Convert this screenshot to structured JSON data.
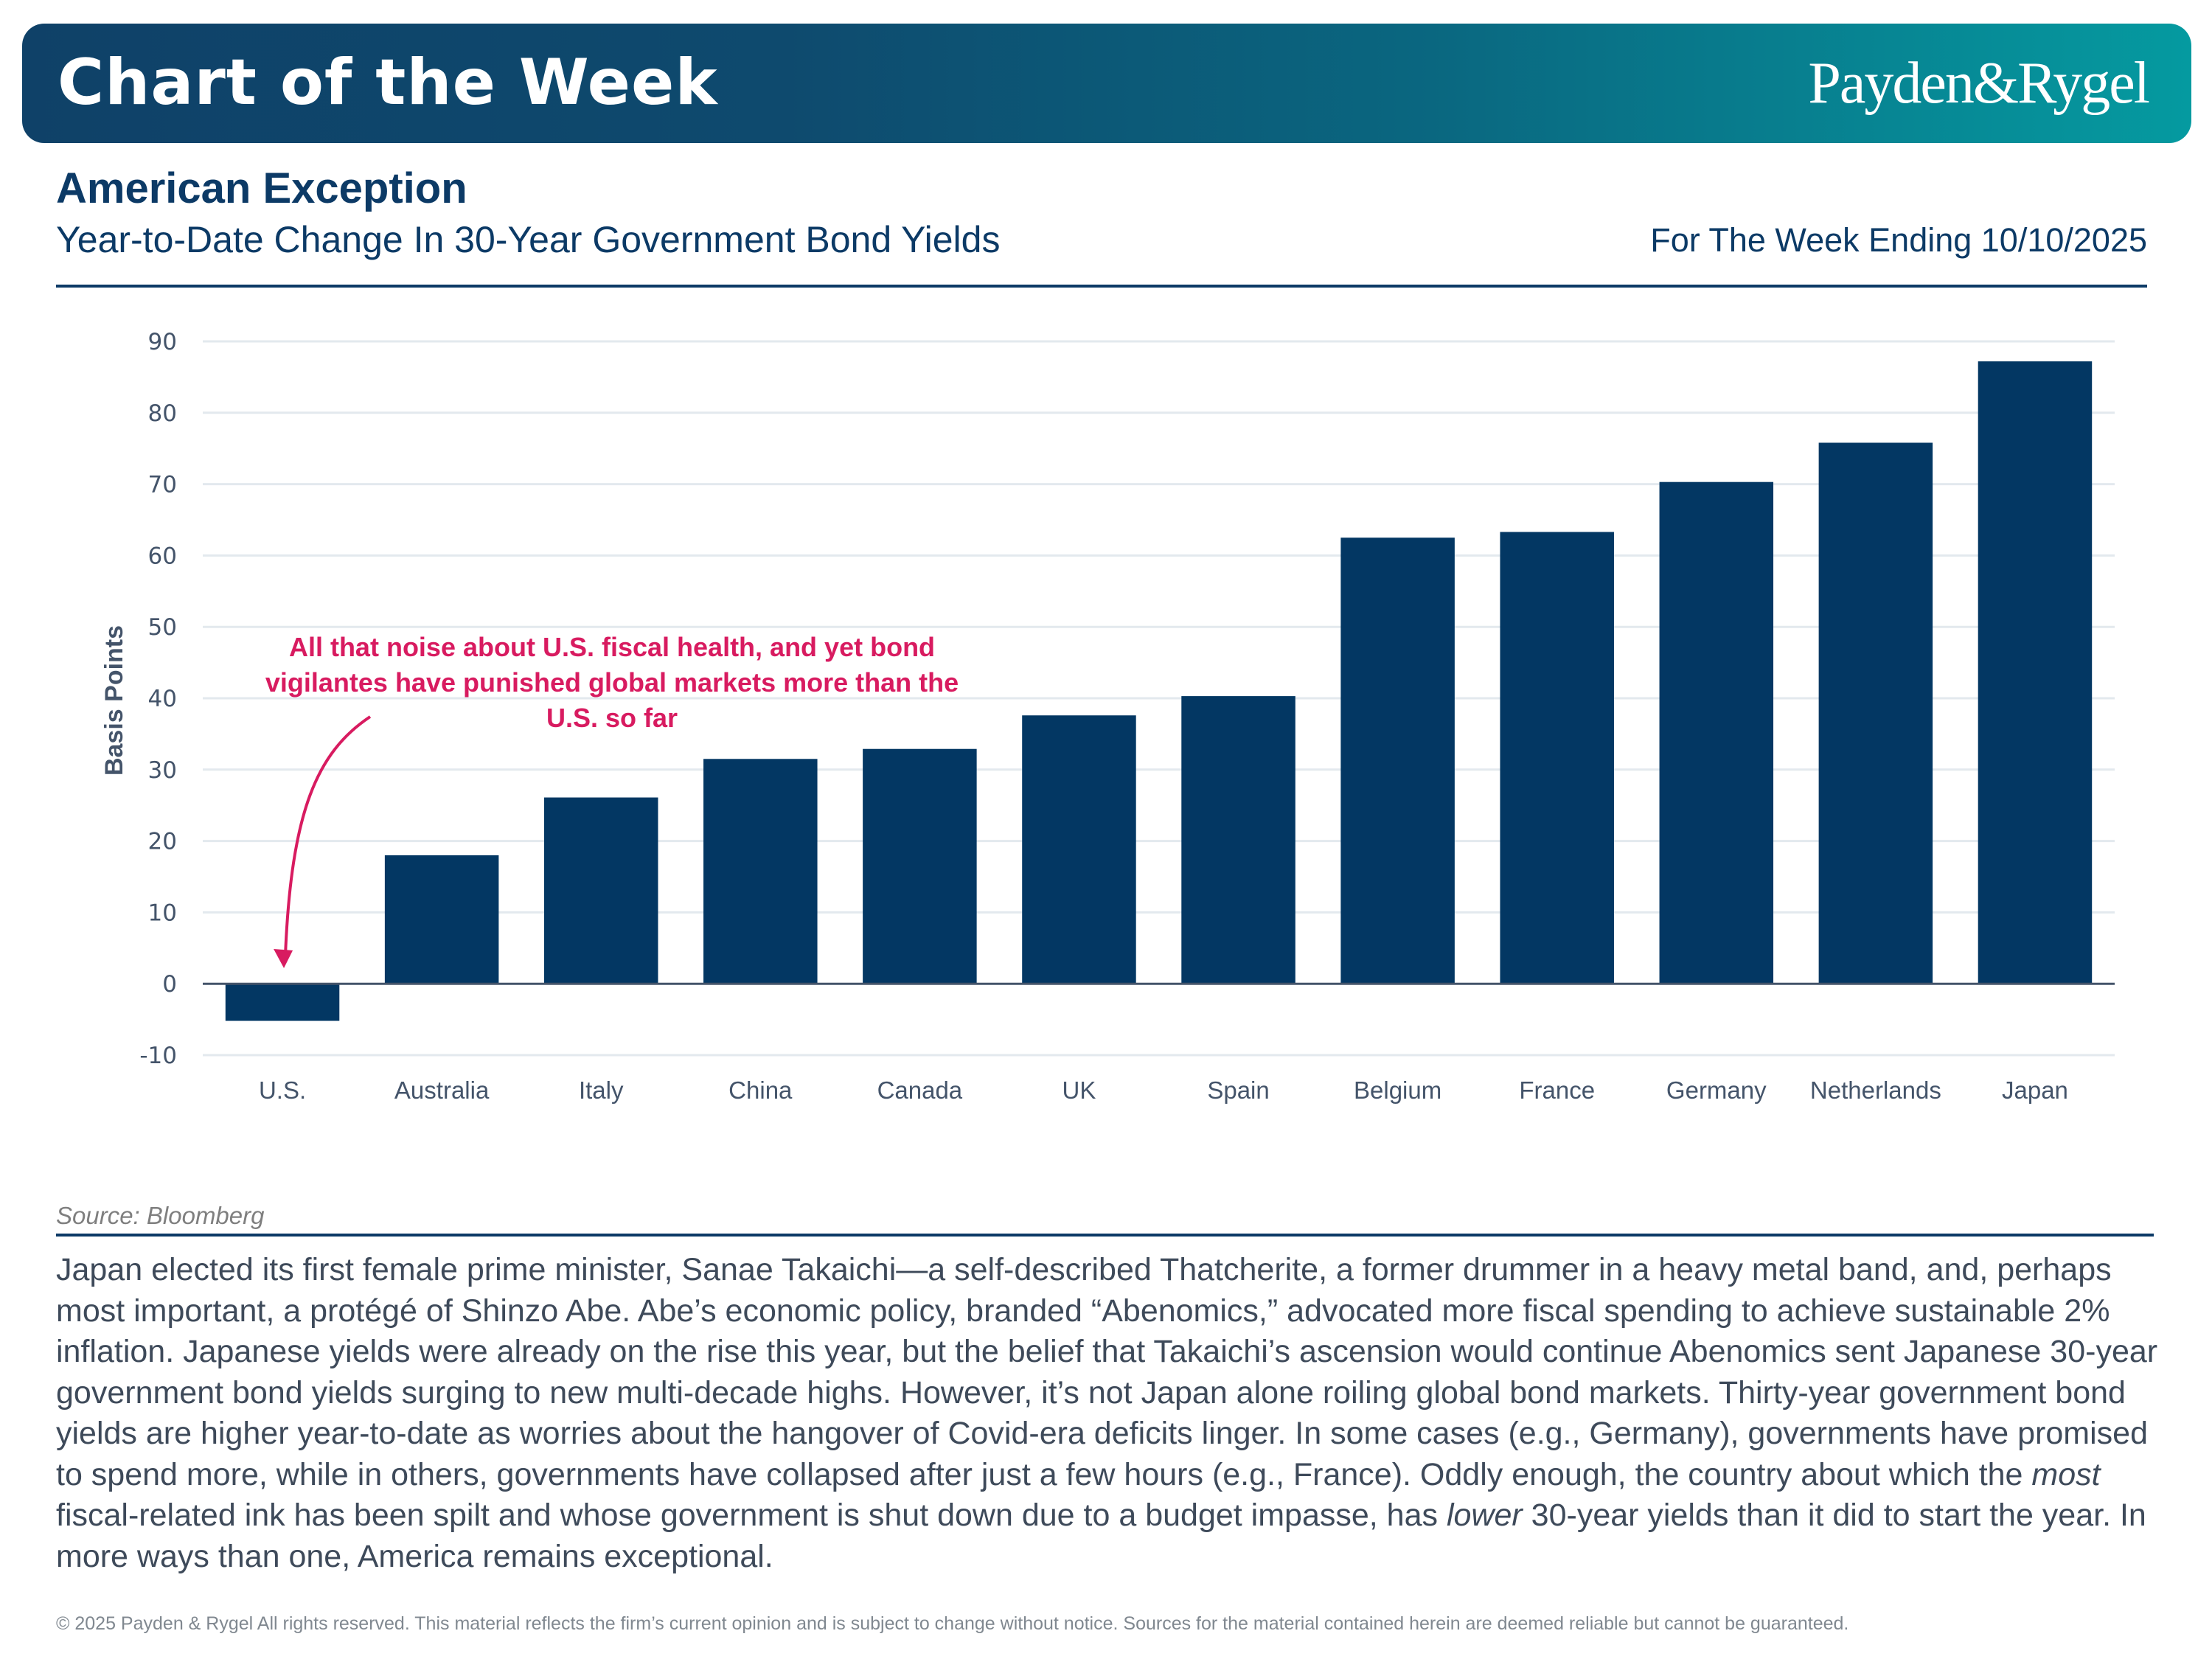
{
  "header": {
    "title": "Chart of the Week",
    "brand": "Payden&Rygel"
  },
  "headline": "American Exception",
  "subtitle": "Year-to-Date Change In 30-Year Government Bond Yields",
  "week_ending": "For The Week Ending 10/10/2025",
  "colors": {
    "bar": "#033763",
    "annotation": "#d81b60",
    "grid": "#e3e9ee",
    "axis_line": "#44546a",
    "brand_navy": "#0c3a66"
  },
  "chart_data": {
    "type": "bar",
    "title": "Year-to-Date Change In 30-Year Government Bond Yields",
    "xlabel": "",
    "ylabel": "Basis Points",
    "ylim": [
      -10,
      90
    ],
    "yticks": [
      -10,
      0,
      10,
      20,
      30,
      40,
      50,
      60,
      70,
      80,
      90
    ],
    "grid": true,
    "legend": "none",
    "categories": [
      "U.S.",
      "Australia",
      "Italy",
      "China",
      "Canada",
      "UK",
      "Spain",
      "Belgium",
      "France",
      "Germany",
      "Netherlands",
      "Japan"
    ],
    "values": [
      -5.2,
      18.0,
      26.1,
      31.5,
      32.9,
      37.6,
      40.3,
      62.5,
      63.3,
      70.3,
      75.8,
      87.2
    ],
    "annotation": {
      "lines": [
        "All that noise about U.S. fiscal health, and yet bond",
        "vigilantes have punished global markets more than the",
        "U.S. so far"
      ],
      "points_to": "U.S."
    }
  },
  "source": "Source: Bloomberg",
  "body": {
    "p1": "Japan elected its first female prime minister, Sanae Takaichi—a self-described Thatcherite, a former drummer in a heavy metal band, and, perhaps most important, a protégé of Shinzo Abe. Abe’s economic policy, branded “Abenomics,” advocated more fiscal spending to achieve sustainable 2% inflation. Japanese yields were already on the rise this year, but the belief that Takaichi’s ascension would continue Abenomics sent Japanese 30-year government bond yields surging to new multi-decade highs. However, it’s not Japan alone roiling global bond markets. Thirty-year government bond yields are higher year-to-date as worries about the hangover of Covid-era deficits linger. In some cases (e.g., Germany), governments have promised to spend more, while in others, governments have collapsed after just a few hours (e.g., France). Oddly enough, the country about which the ",
    "em1": "most",
    "p2": " fiscal-related ink has been spilt and whose government is shut down due to a budget impasse, has ",
    "em2": "lower",
    "p3": " 30-year yields than it did to start the year. In more ways than one, America remains exceptional."
  },
  "footer": "© 2025 Payden & Rygel All rights reserved. This material reflects the firm’s current opinion and is subject to change without notice. Sources for the material contained herein are deemed reliable but cannot be guaranteed."
}
